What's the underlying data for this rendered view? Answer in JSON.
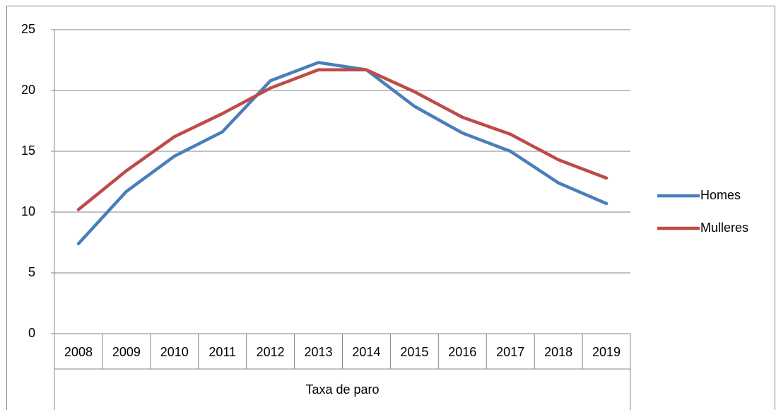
{
  "chart_data": {
    "type": "line",
    "x_label": "Taxa de paro",
    "categories": [
      "2008",
      "2009",
      "2010",
      "2011",
      "2012",
      "2013",
      "2014",
      "2015",
      "2016",
      "2017",
      "2018",
      "2019"
    ],
    "series": [
      {
        "name": "Homes",
        "color": "#4a7ebb",
        "values": [
          7.4,
          11.7,
          14.6,
          16.6,
          20.8,
          22.3,
          21.7,
          18.7,
          16.5,
          15.0,
          12.4,
          10.7
        ]
      },
      {
        "name": "Mulleres",
        "color": "#be4b48",
        "values": [
          10.2,
          13.4,
          16.2,
          18.1,
          20.2,
          21.7,
          21.7,
          19.9,
          17.8,
          16.4,
          14.3,
          12.8
        ]
      }
    ],
    "ylim": [
      0,
      25
    ],
    "yticks": [
      0,
      5,
      10,
      15,
      20,
      25
    ],
    "grid": true,
    "legend": "right"
  }
}
